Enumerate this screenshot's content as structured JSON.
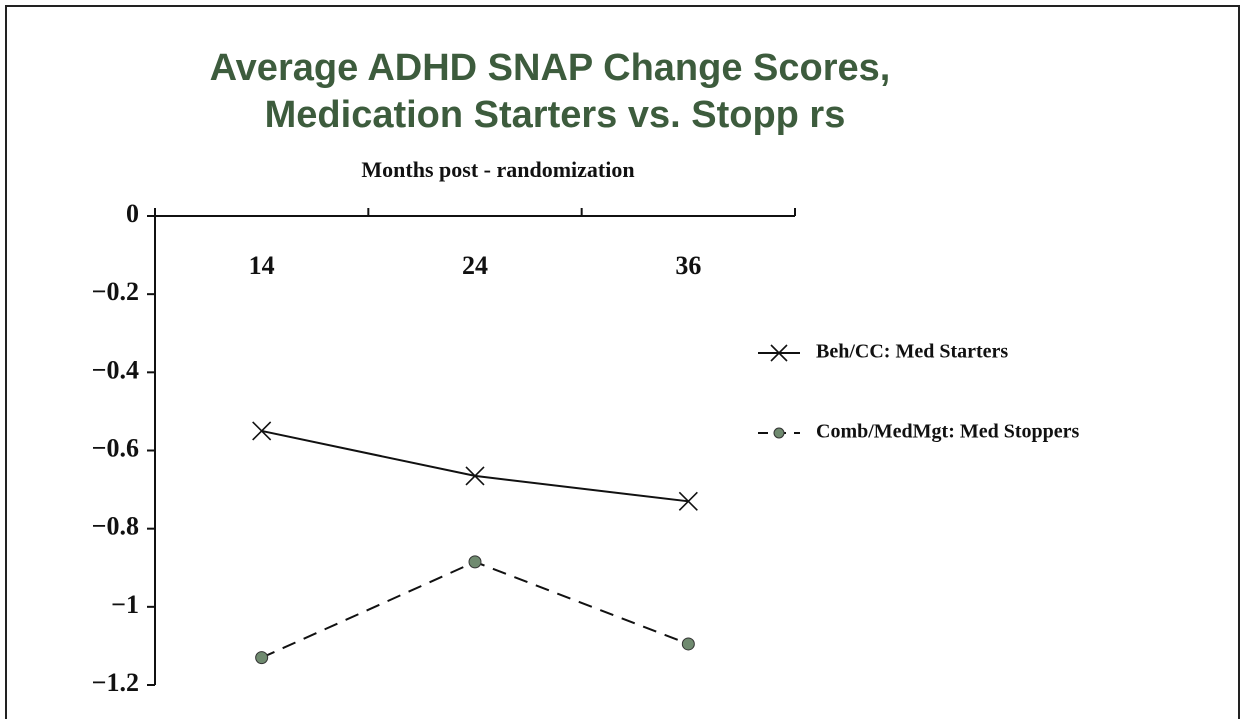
{
  "chart_data": {
    "type": "line",
    "title": [
      "Average ADHD SNAP Change Scores,",
      "Medication Starters vs. Stopp  rs"
    ],
    "x_label": "Months post - randomization",
    "categories": [
      "14",
      "24",
      "36"
    ],
    "series": [
      {
        "name": "Beh/CC: Med Starters",
        "color": "#111111",
        "marker": "x",
        "dash": false,
        "values": [
          -0.55,
          -0.665,
          -0.73
        ]
      },
      {
        "name": "Comb/MedMgt: Med Stoppers",
        "color": "#111111",
        "marker": "circle",
        "dash": true,
        "values": [
          -1.13,
          -0.885,
          -1.095
        ]
      }
    ],
    "ylim": [
      -1.2,
      0
    ],
    "yticks": [
      0,
      {
        "value": -0.2,
        "label": "−0.2"
      },
      {
        "value": -0.4,
        "label": "−0.4"
      },
      {
        "value": -0.6,
        "label": "−0.6"
      },
      {
        "value": -0.8,
        "label": "−0.8"
      },
      {
        "value": -1,
        "label": "−1"
      },
      {
        "value": -1.2,
        "label": "−1.2"
      }
    ],
    "grid": false,
    "legend": "right"
  }
}
